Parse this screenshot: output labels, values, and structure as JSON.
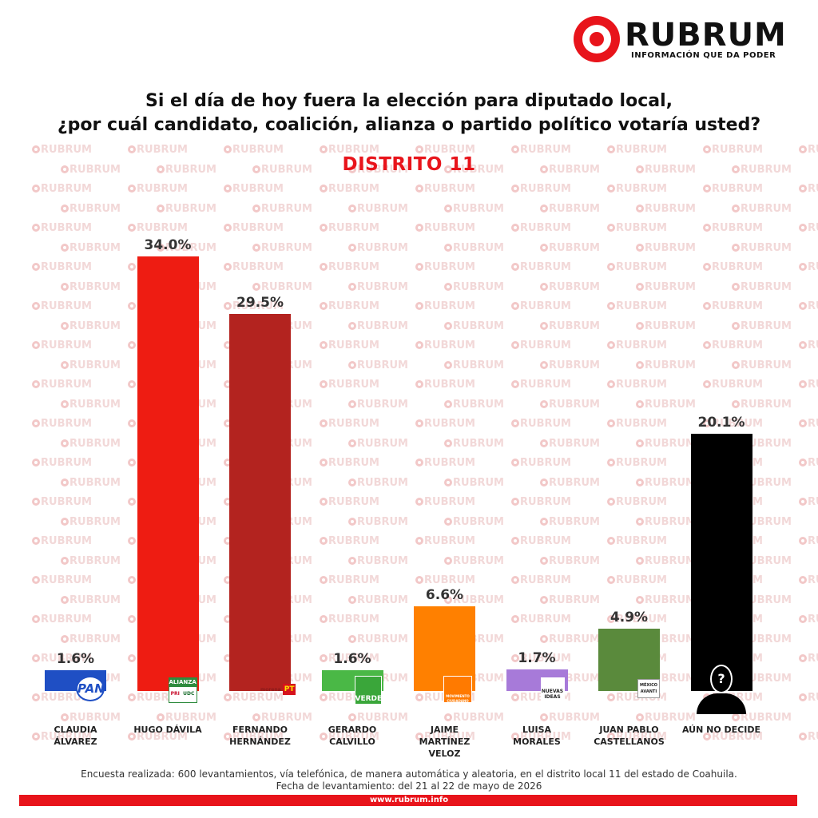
{
  "brand": {
    "name": "RUBRUM",
    "tagline": "INFORMACIÓN QUE DA PODER",
    "watermark": "RUBRUM",
    "url": "www.rubrum.info",
    "accent": "#e8141b"
  },
  "question": [
    "Si el día de hoy fuera la elección para diputado local,",
    "¿por cuál candidato, coalición, alianza o partido político votaría usted?"
  ],
  "chart_data": {
    "type": "bar",
    "title": "DISTRITO 11",
    "categories": [
      "CLAUDIA ÁLVAREZ",
      "HUGO DÁVILA",
      "FERNANDO HERNÁNDEZ",
      "GERARDO CALVILLO",
      "JAIME MARTÍNEZ VELOZ",
      "LUISA MORALES",
      "JUAN PABLO CASTELLANOS",
      "AÚN NO DECIDE"
    ],
    "values": [
      1.6,
      34.0,
      29.5,
      1.6,
      6.6,
      1.7,
      4.9,
      20.1
    ],
    "labels": [
      "1.6%",
      "34.0%",
      "29.5%",
      "1.6%",
      "6.6%",
      "1.7%",
      "4.9%",
      "20.1%"
    ],
    "name_lines": [
      [
        "CLAUDIA",
        "ÁLVAREZ"
      ],
      [
        "HUGO DÁVILA"
      ],
      [
        "FERNANDO",
        "HERNÁNDEZ"
      ],
      [
        "GERARDO",
        "CALVILLO"
      ],
      [
        "JAIME",
        "MARTÍNEZ",
        "VELOZ"
      ],
      [
        "LUISA",
        "MORALES"
      ],
      [
        "JUAN PABLO",
        "CASTELLANOS"
      ],
      [
        "AÚN NO DECIDE"
      ]
    ],
    "colors": [
      "#1f4fc4",
      "#ee1c12",
      "#b3231f",
      "#4ab846",
      "#ff8000",
      "#a77ad9",
      "#5a8a3c",
      "#000000"
    ],
    "party_icons": [
      "pan-logo",
      "alianza-pri-udc-logo",
      "morena-pt-logo",
      "verde-logo",
      "movimiento-ciudadano-logo",
      "nuevas-ideas-logo",
      "mexico-avanti-logo",
      "undecided-silhouette"
    ],
    "party_texts": [
      [
        "PAN"
      ],
      [
        "ALIANZA",
        "PRI",
        "UDC"
      ],
      [
        "morena",
        "PT"
      ],
      [
        "VERDE"
      ],
      [
        "MOVIMIENTO CIUDADANO"
      ],
      [
        "NUEVAS",
        "IDEAS"
      ],
      [
        "MÉXICO",
        "AVANTI"
      ],
      [
        "?"
      ]
    ]
  },
  "footnote": [
    "Encuesta realizada: 600 levantamientos, vía telefónica, de manera automática y aleatoria, en el distrito local 11 del estado de Coahuila.",
    "Fecha de levantamiento: del 21 al 22 de mayo de 2026"
  ]
}
